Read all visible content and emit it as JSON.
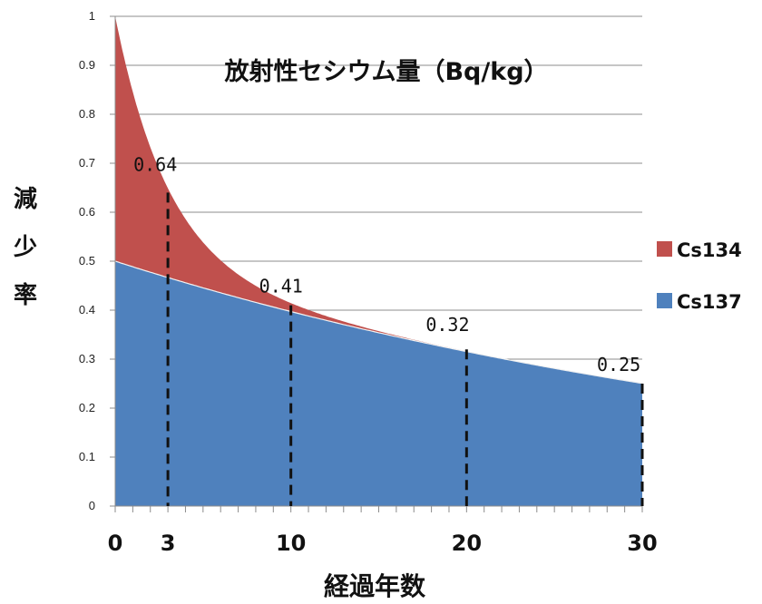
{
  "chart_data": {
    "type": "area",
    "title": "放射性セシウム量（Bq/kg）",
    "xlabel": "経過年数",
    "ylabel": "減少率",
    "xlim": [
      0,
      30
    ],
    "ylim": [
      0,
      1
    ],
    "yticks": [
      "0",
      "0.1",
      "0.2",
      "0.3",
      "0.4",
      "0.5",
      "0.6",
      "0.7",
      "0.8",
      "0.9",
      "1"
    ],
    "xticks": [
      {
        "value": 0,
        "label": "0"
      },
      {
        "value": 3,
        "label": "3"
      },
      {
        "value": 10,
        "label": "10"
      },
      {
        "value": 20,
        "label": "20"
      },
      {
        "value": 30,
        "label": "30"
      }
    ],
    "grid": true,
    "stacked": true,
    "legend_position": "right",
    "series": [
      {
        "name": "Cs134",
        "color": "#c0504d",
        "x": [
          0,
          1,
          2,
          3,
          4,
          5,
          6,
          7,
          8,
          9,
          10,
          12,
          14,
          16,
          18,
          20,
          25,
          30
        ],
        "values": [
          0.5,
          0.36,
          0.26,
          0.18,
          0.13,
          0.09,
          0.07,
          0.05,
          0.03,
          0.02,
          0.02,
          0.01,
          0.0,
          0.0,
          0.0,
          0.0,
          0.0,
          0.0
        ]
      },
      {
        "name": "Cs137",
        "color": "#4f81bd",
        "x": [
          0,
          1,
          2,
          3,
          4,
          5,
          6,
          7,
          8,
          9,
          10,
          12,
          14,
          16,
          18,
          20,
          25,
          30
        ],
        "values": [
          0.5,
          0.49,
          0.48,
          0.46,
          0.45,
          0.44,
          0.43,
          0.42,
          0.41,
          0.4,
          0.4,
          0.38,
          0.36,
          0.34,
          0.33,
          0.32,
          0.28,
          0.25
        ]
      }
    ],
    "annotations": [
      {
        "x": 3,
        "y": 0.64,
        "label": "0.64"
      },
      {
        "x": 10,
        "y": 0.41,
        "label": "0.41"
      },
      {
        "x": 20,
        "y": 0.32,
        "label": "0.32"
      },
      {
        "x": 30,
        "y": 0.25,
        "label": "0.25"
      }
    ]
  }
}
